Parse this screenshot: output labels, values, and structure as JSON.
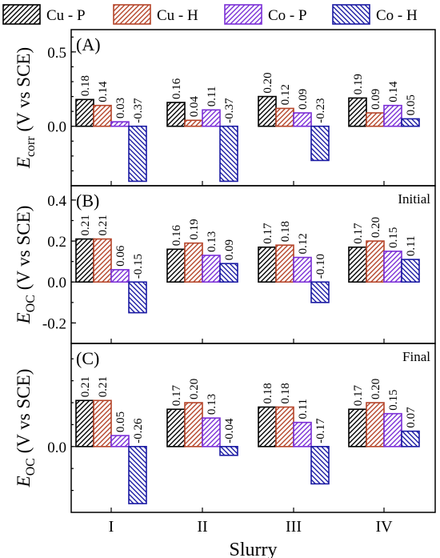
{
  "chart_data": [
    {
      "type": "bar",
      "panel_label": "(A)",
      "note": "",
      "categories": [
        "I",
        "II",
        "III",
        "IV"
      ],
      "ylabel": "E",
      "ylabel_sub": "corr",
      "ylabel_unit": " (V vs SCE)",
      "ylim": [
        -0.4,
        0.65
      ],
      "yticks": [
        "0.5",
        "0.0"
      ],
      "ytick_values": [
        0.5,
        0.0
      ],
      "series": [
        {
          "name": "Cu - P",
          "values": [
            0.18,
            0.16,
            0.2,
            0.19
          ],
          "labels": [
            "0.18",
            "0.16",
            "0.20",
            "0.19"
          ]
        },
        {
          "name": "Cu - H",
          "values": [
            0.14,
            0.04,
            0.12,
            0.09
          ],
          "labels": [
            "0.14",
            "0.04",
            "0.12",
            "0.09"
          ]
        },
        {
          "name": "Co - P",
          "values": [
            0.03,
            0.11,
            0.09,
            0.14
          ],
          "labels": [
            "0.03",
            "0.11",
            "0.09",
            "0.14"
          ]
        },
        {
          "name": "Co - H",
          "values": [
            -0.37,
            -0.37,
            -0.23,
            0.05
          ],
          "labels": [
            "-0.37",
            "-0.37",
            "-0.23",
            "0.05"
          ]
        }
      ]
    },
    {
      "type": "bar",
      "panel_label": "(B)",
      "note": "Initial",
      "categories": [
        "I",
        "II",
        "III",
        "IV"
      ],
      "ylabel": "E",
      "ylabel_sub": "OC",
      "ylabel_unit": " (V vs SCE)",
      "ylim": [
        -0.3,
        0.47
      ],
      "yticks": [
        "0.4",
        "0.2",
        "0.0",
        "-0.2"
      ],
      "ytick_values": [
        0.4,
        0.2,
        0.0,
        -0.2
      ],
      "series": [
        {
          "name": "Cu - P",
          "values": [
            0.21,
            0.16,
            0.17,
            0.17
          ],
          "labels": [
            "0.21",
            "0.16",
            "0.17",
            "0.17"
          ]
        },
        {
          "name": "Cu - H",
          "values": [
            0.21,
            0.19,
            0.18,
            0.2
          ],
          "labels": [
            "0.21",
            "0.19",
            "0.18",
            "0.20"
          ]
        },
        {
          "name": "Co - P",
          "values": [
            0.06,
            0.13,
            0.12,
            0.15
          ],
          "labels": [
            "0.06",
            "0.13",
            "0.12",
            "0.15"
          ]
        },
        {
          "name": "Co - H",
          "values": [
            -0.15,
            0.09,
            -0.1,
            0.11
          ],
          "labels": [
            "-0.15",
            "0.09",
            "-0.10",
            "0.11"
          ]
        }
      ]
    },
    {
      "type": "bar",
      "panel_label": "(C)",
      "note": "Final",
      "categories": [
        "I",
        "II",
        "III",
        "IV"
      ],
      "xlabel": "Slurry",
      "ylabel": "E",
      "ylabel_sub": "OC",
      "ylabel_unit": " (V vs SCE)",
      "ylim": [
        -0.3,
        0.47
      ],
      "yticks": [
        "0.0"
      ],
      "ytick_values": [
        0.0
      ],
      "series": [
        {
          "name": "Cu - P",
          "values": [
            0.21,
            0.17,
            0.18,
            0.17
          ],
          "labels": [
            "0.21",
            "0.17",
            "0.18",
            "0.17"
          ]
        },
        {
          "name": "Cu - H",
          "values": [
            0.21,
            0.2,
            0.18,
            0.2
          ],
          "labels": [
            "0.21",
            "0.20",
            "0.18",
            "0.20"
          ]
        },
        {
          "name": "Co - P",
          "values": [
            0.05,
            0.13,
            0.11,
            0.15
          ],
          "labels": [
            "0.05",
            "0.13",
            "0.11",
            "0.15"
          ]
        },
        {
          "name": "Co - H",
          "values": [
            -0.26,
            -0.04,
            -0.17,
            0.07
          ],
          "labels": [
            "-0.26",
            "-0.04",
            "-0.17",
            "0.07"
          ]
        }
      ]
    }
  ],
  "legend": {
    "placement": "top",
    "items": [
      {
        "name": "Cu - P",
        "color": "#000000",
        "hatch": "forward"
      },
      {
        "name": "Cu - H",
        "color": "#b5452a",
        "hatch": "forward"
      },
      {
        "name": "Co - P",
        "color": "#7b2fd6",
        "hatch": "forward"
      },
      {
        "name": "Co - H",
        "color": "#1a1aa3",
        "hatch": "backward"
      }
    ]
  }
}
